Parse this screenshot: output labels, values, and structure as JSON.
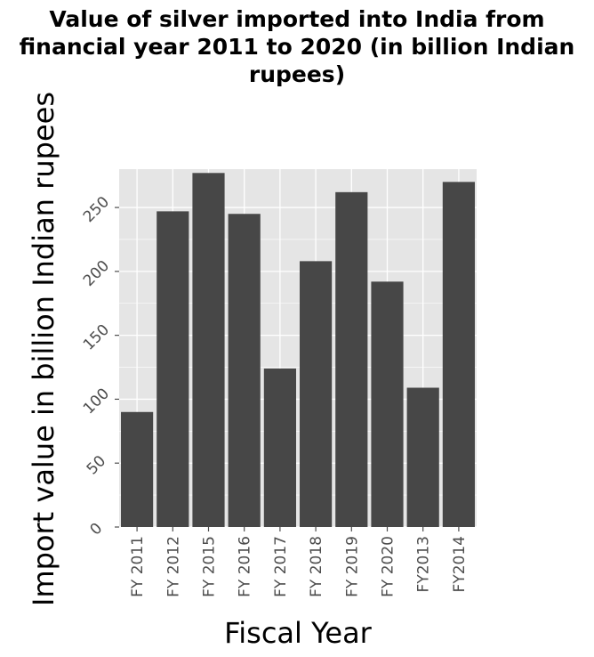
{
  "chart_data": {
    "type": "bar",
    "title": "Value of silver imported into India from financial year 2011 to 2020 (in billion Indian rupees)",
    "title_lines": [
      "Value of silver imported into India from",
      "financial year 2011 to 2020 (in billion Indian",
      "rupees)"
    ],
    "xlabel": "Fiscal Year",
    "ylabel": "Import value in billion Indian rupees",
    "categories": [
      "FY 2011",
      "FY 2012",
      "FY 2015",
      "FY 2016",
      "FY 2017",
      "FY 2018",
      "FY 2019",
      "FY 2020",
      "FY2013",
      "FY2014"
    ],
    "values": [
      90,
      247,
      277,
      245,
      124,
      208,
      262,
      192,
      109,
      270
    ],
    "ylim": [
      0,
      280
    ],
    "yticks": [
      0,
      50,
      100,
      150,
      200,
      250
    ],
    "grid": true,
    "colors": {
      "bar": "#474747",
      "panel": "#e5e5e5",
      "grid": "#ffffff"
    }
  }
}
